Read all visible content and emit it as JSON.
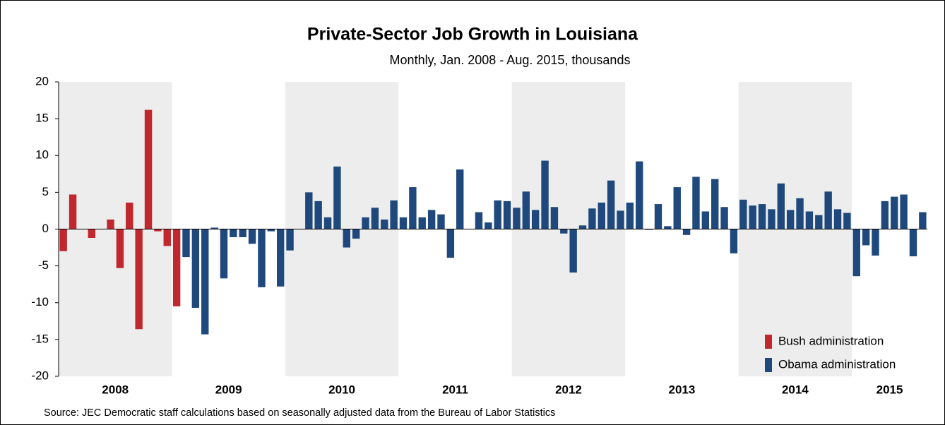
{
  "chart_data": {
    "type": "bar",
    "title": "Private-Sector Job Growth in Louisiana",
    "subtitle": "Monthly, Jan. 2008 - Aug. 2015, thousands",
    "source": "Source: JEC Democratic staff calculations based on seasonally adjusted data from the Bureau of Labor Statistics",
    "years": [
      "2008",
      "2009",
      "2010",
      "2011",
      "2012",
      "2013",
      "2014",
      "2015"
    ],
    "shade_color": "#ededed",
    "ylim": [
      -20,
      20
    ],
    "yticks": [
      -20,
      -15,
      -10,
      -5,
      0,
      5,
      10,
      15,
      20
    ],
    "legend": "bottom-right",
    "series": [
      {
        "name": "Bush administration",
        "color": "#c0282d",
        "values": [
          -3,
          4.7,
          0,
          -1.2,
          0,
          1.3,
          -5.3,
          3.6,
          -13.6,
          16.2,
          -0.3,
          -2.3,
          -10.5,
          null,
          null,
          null,
          null,
          null,
          null,
          null,
          null,
          null,
          null,
          null,
          null,
          null,
          null,
          null,
          null,
          null,
          null,
          null,
          null,
          null,
          null,
          null,
          null,
          null,
          null,
          null,
          null,
          null,
          null,
          null,
          null,
          null,
          null,
          null,
          null,
          null,
          null,
          null,
          null,
          null,
          null,
          null,
          null,
          null,
          null,
          null,
          null,
          null,
          null,
          null,
          null,
          null,
          null,
          null,
          null,
          null,
          null,
          null,
          null,
          null,
          null,
          null,
          null,
          null,
          null,
          null,
          null,
          null,
          null,
          null,
          null,
          null,
          null,
          null,
          null,
          null,
          null,
          null
        ]
      },
      {
        "name": "Obama administration",
        "color": "#1f497d",
        "values": [
          null,
          null,
          null,
          null,
          null,
          null,
          null,
          null,
          null,
          null,
          null,
          null,
          null,
          -3.8,
          -10.7,
          -14.3,
          0.2,
          -6.7,
          -1.1,
          -1.1,
          -2.0,
          -7.9,
          -0.3,
          -7.8,
          -2.9,
          0,
          5.0,
          3.8,
          1.6,
          8.5,
          -2.5,
          -1.3,
          1.6,
          2.9,
          1.3,
          3.9,
          1.6,
          5.7,
          1.6,
          2.6,
          2.0,
          -3.9,
          8.1,
          0,
          2.3,
          0.9,
          3.9,
          3.8,
          2.9,
          5.1,
          2.6,
          9.3,
          3.0,
          -0.6,
          -5.9,
          0.5,
          2.8,
          3.6,
          6.6,
          2.5,
          3.6,
          9.2,
          -0.1,
          3.4,
          0.4,
          5.7,
          -0.8,
          7.1,
          2.4,
          6.8,
          3.0,
          -3.3,
          4.0,
          3.2,
          3.4,
          2.7,
          6.2,
          2.6,
          4.2,
          2.4,
          1.9,
          5.1,
          2.7,
          2.2,
          -6.4,
          -2.2,
          -3.6,
          3.8,
          4.4,
          4.7,
          -3.7,
          2.3
        ]
      }
    ]
  }
}
